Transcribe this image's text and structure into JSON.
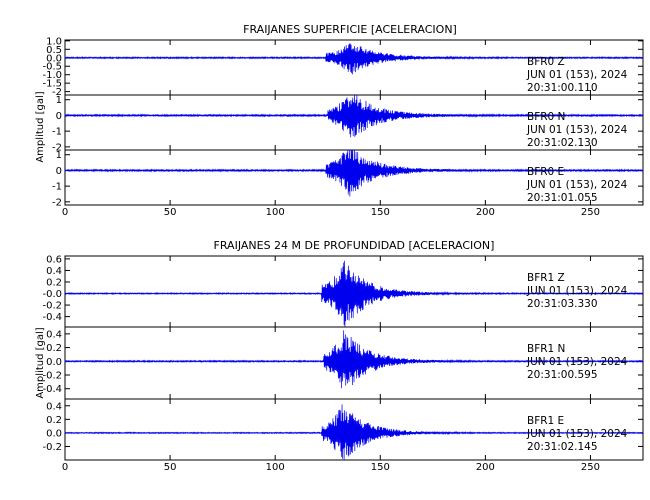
{
  "chart_data": [
    {
      "type": "line",
      "title": "FRAIJANES SUPERFICIE [ACELERACION]",
      "ylabel": "Amplitud [gal]",
      "xlim": [
        0,
        275
      ],
      "x_ticks": [
        "0",
        "50",
        "100",
        "150",
        "200",
        "250"
      ],
      "series": [
        {
          "name": "BFR0 Z",
          "station": "BFR0",
          "component": "Z",
          "date": "JUN 01 (153), 2024",
          "time": "20:31:00.110",
          "ylim": [
            -2.2,
            1.05
          ],
          "y_ticks": [
            "-2",
            "-1.5",
            "-1.0",
            "-0.5",
            "0.0",
            "0.5",
            "1.0"
          ],
          "noise": 0.04,
          "event_start": 124,
          "event_peak": 136,
          "peak_amplitude": 1.0,
          "decay": 12,
          "seed": 11
        },
        {
          "name": "BFR0 N",
          "station": "BFR0",
          "component": "N",
          "date": "JUN 01 (153), 2024",
          "time": "20:31:02.130",
          "ylim": [
            -2.2,
            1.3
          ],
          "y_ticks": [
            "-2",
            "-1",
            "0",
            "1"
          ],
          "noise": 0.05,
          "event_start": 125,
          "event_peak": 136,
          "peak_amplitude": 1.6,
          "decay": 12,
          "seed": 23
        },
        {
          "name": "BFR0 E",
          "station": "BFR0",
          "component": "E",
          "date": "JUN 01 (153), 2024",
          "time": "20:31:01.055",
          "ylim": [
            -2.2,
            1.3
          ],
          "y_ticks": [
            "-2",
            "-1",
            "0",
            "1"
          ],
          "noise": 0.05,
          "event_start": 124,
          "event_peak": 135,
          "peak_amplitude": 1.7,
          "decay": 12,
          "seed": 37
        }
      ]
    },
    {
      "type": "line",
      "title": "FRAIJANES 24 M DE PROFUNDIDAD [ACELERACION]",
      "ylabel": "Amplitud [gal]",
      "xlim": [
        0,
        275
      ],
      "x_ticks": [
        "0",
        "50",
        "100",
        "150",
        "200",
        "250"
      ],
      "series": [
        {
          "name": "BFR1 Z",
          "station": "BFR1",
          "component": "Z",
          "date": "JUN 01 (153), 2024",
          "time": "20:31:03.330",
          "ylim": [
            -0.58,
            0.65
          ],
          "y_ticks": [
            "-0.4",
            "-0.2",
            "-0.0",
            "0.2",
            "0.4",
            "0.6"
          ],
          "noise": 0.01,
          "event_start": 122,
          "event_peak": 133,
          "peak_amplitude": 0.6,
          "decay": 11,
          "seed": 41
        },
        {
          "name": "BFR1 N",
          "station": "BFR1",
          "component": "N",
          "date": "JUN 01 (153), 2024",
          "time": "20:31:00.595",
          "ylim": [
            -0.55,
            0.5
          ],
          "y_ticks": [
            "-0.4",
            "-0.2",
            "0.0",
            "0.2",
            "0.4"
          ],
          "noise": 0.01,
          "event_start": 123,
          "event_peak": 133,
          "peak_amplitude": 0.48,
          "decay": 11,
          "seed": 53
        },
        {
          "name": "BFR1 E",
          "station": "BFR1",
          "component": "E",
          "date": "JUN 01 (153), 2024",
          "time": "20:31:02.145",
          "ylim": [
            -0.4,
            0.5
          ],
          "y_ticks": [
            "-0.2",
            "0.0",
            "0.2",
            "0.4"
          ],
          "noise": 0.008,
          "event_start": 122,
          "event_peak": 132,
          "peak_amplitude": 0.45,
          "decay": 11,
          "seed": 67
        }
      ]
    }
  ],
  "colors": {
    "trace": "#0000ee",
    "axes": "#000000"
  }
}
